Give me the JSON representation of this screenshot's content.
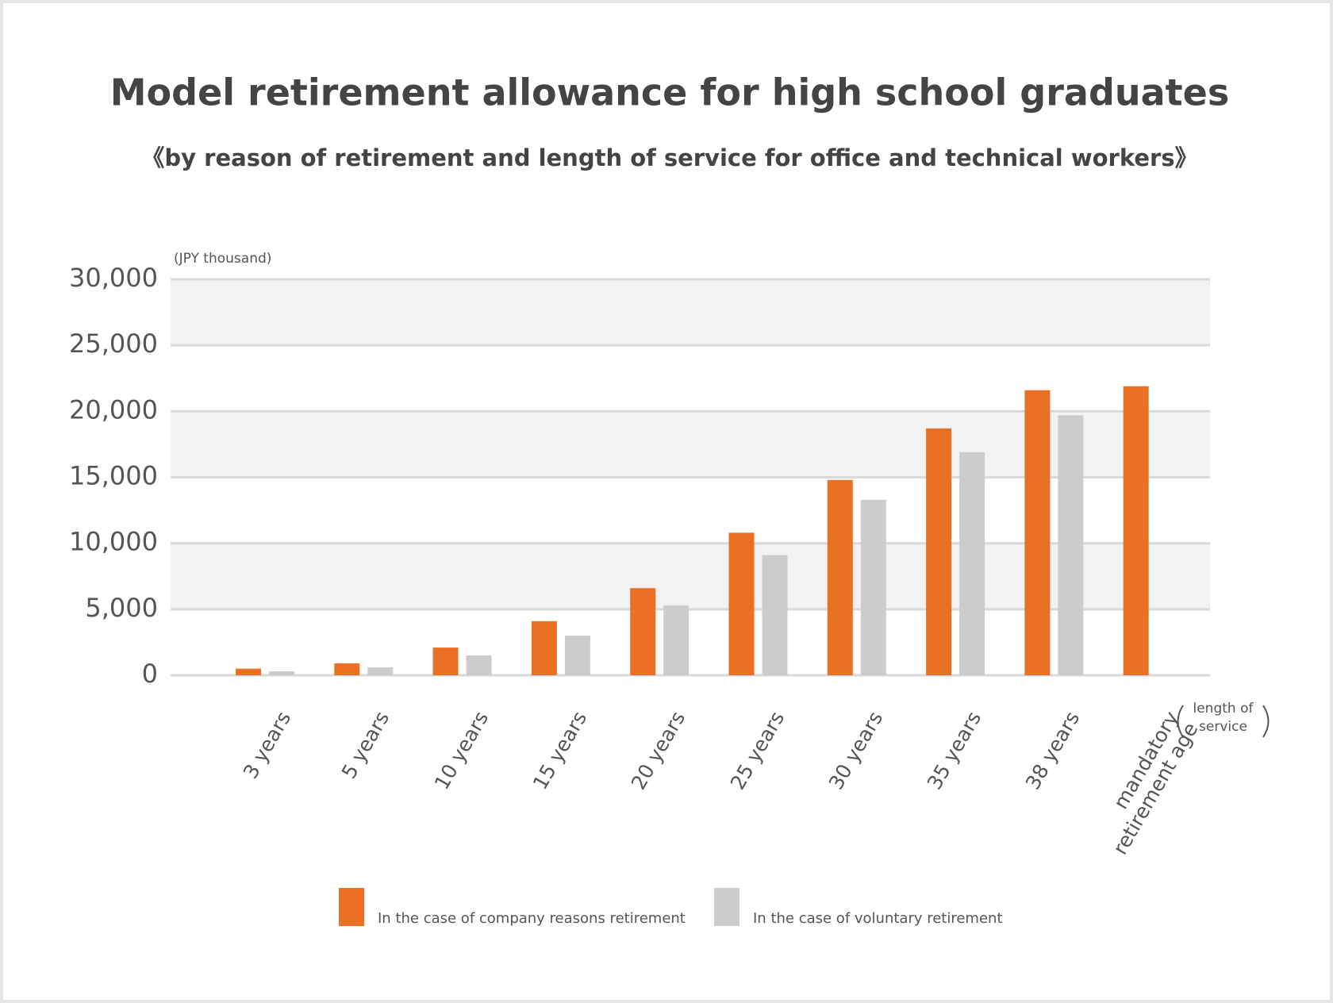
{
  "chart_data": {
    "type": "bar",
    "title": "Model retirement allowance for high school graduates",
    "subtitle": "《by reason of retirement and length of service for office and technical workers》",
    "y_axis_label": "(JPY thousand)",
    "x_axis_label": "length of service",
    "categories": [
      "3 years",
      "5 years",
      "10 years",
      "15 years",
      "20 years",
      "25 years",
      "30 years",
      "35 years",
      "38 years",
      "mandatory retirement age"
    ],
    "series": [
      {
        "name": "In the case of company reasons retirement",
        "color": "#eb7024",
        "values": [
          500,
          900,
          2100,
          4100,
          6600,
          10800,
          14800,
          18700,
          21600,
          21900
        ]
      },
      {
        "name": "In the case of voluntary retirement",
        "color": "#cccccc",
        "values": [
          300,
          600,
          1500,
          3000,
          5300,
          9100,
          13300,
          16900,
          19700,
          null
        ]
      }
    ],
    "ylim": [
      0,
      30000
    ],
    "yticks": [
      0,
      {
        "value": 5000,
        "label": "5,000"
      },
      {
        "value": 10000,
        "label": "10,000"
      },
      {
        "value": 15000,
        "label": "15,000"
      },
      {
        "value": 20000,
        "label": "20,000"
      },
      {
        "value": 25000,
        "label": "25,000"
      },
      {
        "value": 30000,
        "label": "30,000"
      }
    ],
    "grid": true
  }
}
